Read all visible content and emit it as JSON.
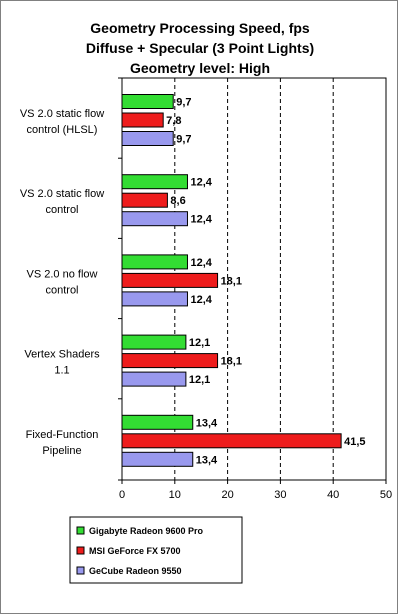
{
  "chart_data": {
    "type": "bar",
    "orientation": "horizontal",
    "title": [
      "Geometry Processing Speed, fps",
      "Diffuse + Specular (3 Point Lights)",
      "Geometry level: High"
    ],
    "categories": [
      [
        "VS 2.0 static flow",
        "control (HLSL)"
      ],
      [
        "VS 2.0 static flow",
        "control"
      ],
      [
        "VS 2.0 no flow",
        "control"
      ],
      [
        "Vertex Shaders",
        "1.1"
      ],
      [
        "Fixed-Function",
        "Pipeline"
      ]
    ],
    "series": [
      {
        "name": "Gigabyte Radeon 9600 Pro",
        "color": "#33dd33",
        "values": [
          9.7,
          12.4,
          12.4,
          12.1,
          13.4
        ],
        "labels": [
          "9,7",
          "12,4",
          "12,4",
          "12,1",
          "13,4"
        ]
      },
      {
        "name": "MSI GeForce FX 5700",
        "color": "#ee1c1c",
        "values": [
          7.8,
          8.6,
          18.1,
          18.1,
          41.5
        ],
        "labels": [
          "7,8",
          "8,6",
          "18,1",
          "18,1",
          "41,5"
        ]
      },
      {
        "name": "GeCube Radeon 9550",
        "color": "#9999ee",
        "values": [
          9.7,
          12.4,
          12.4,
          12.1,
          13.4
        ],
        "labels": [
          "9,7",
          "12,4",
          "12,4",
          "12,1",
          "13,4"
        ]
      }
    ],
    "xlim": [
      0,
      50
    ],
    "xticks": [
      0,
      10,
      20,
      30,
      40,
      50
    ],
    "grid": "vertical-dashed",
    "legend_position": "bottom-left"
  }
}
